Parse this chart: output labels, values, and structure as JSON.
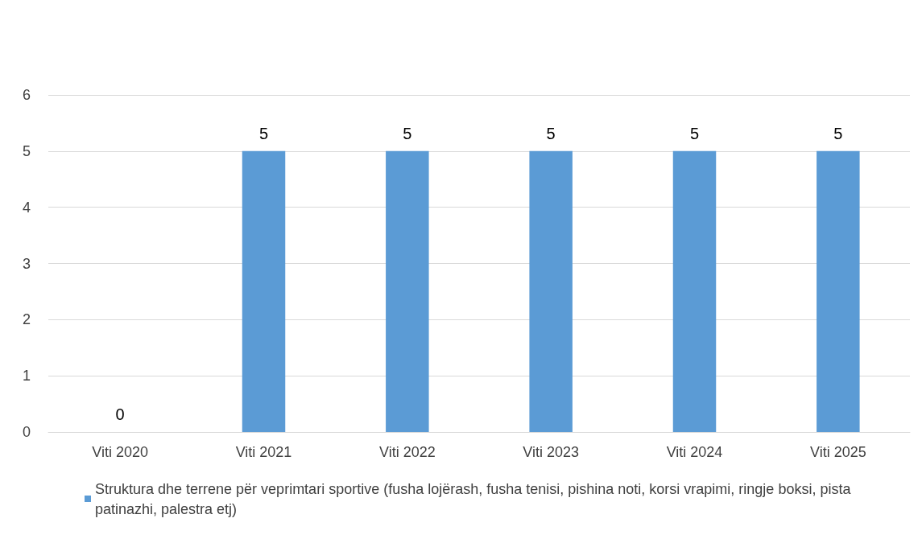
{
  "chart_data": {
    "type": "bar",
    "categories": [
      "Viti 2020",
      "Viti 2021",
      "Viti 2022",
      "Viti 2023",
      "Viti 2024",
      "Viti 2025"
    ],
    "series": [
      {
        "name": "Struktura dhe terrene për veprimtari sportive (fusha lojërash, fusha tenisi, pishina noti, korsi vrapimi, ringje boksi, pista patinazhi, palestra etj)",
        "color": "#5b9bd5",
        "values": [
          0,
          5,
          5,
          5,
          5,
          5
        ]
      }
    ],
    "ylim": [
      0,
      6
    ],
    "yticks": [
      0,
      1,
      2,
      3,
      4,
      5,
      6
    ],
    "grid": "y",
    "legend": "bottom",
    "data_labels": true
  }
}
